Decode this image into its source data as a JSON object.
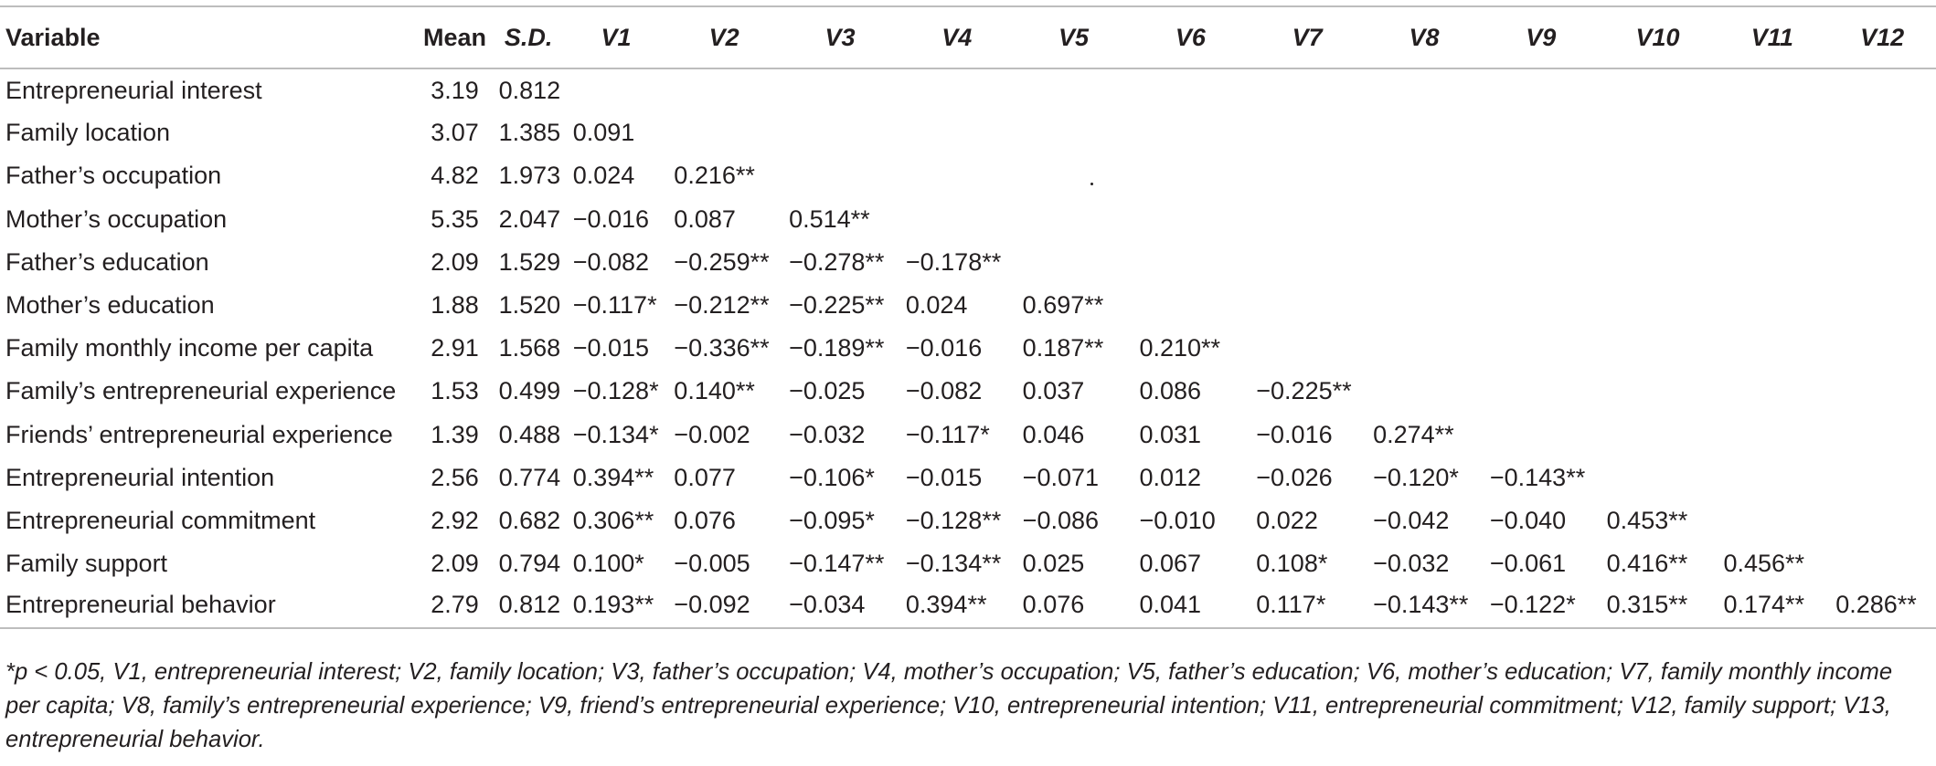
{
  "table": {
    "headers": [
      "Variable",
      "Mean",
      "S.D.",
      "V1",
      "V2",
      "V3",
      "V4",
      "V5",
      "V6",
      "V7",
      "V8",
      "V9",
      "V10",
      "V11",
      "V12"
    ],
    "rows": [
      [
        "Entrepreneurial interest",
        "3.19",
        "0.812",
        "",
        "",
        "",
        "",
        "",
        "",
        "",
        "",
        "",
        "",
        "",
        ""
      ],
      [
        "Family location",
        "3.07",
        "1.385",
        "0.091",
        "",
        "",
        "",
        "",
        "",
        "",
        "",
        "",
        "",
        "",
        ""
      ],
      [
        "Father’s occupation",
        "4.82",
        "1.973",
        "0.024",
        "0.216**",
        "",
        "",
        "",
        "",
        "",
        "",
        "",
        "",
        "",
        ""
      ],
      [
        "Mother’s occupation",
        "5.35",
        "2.047",
        "−0.016",
        "0.087",
        "0.514**",
        "",
        "",
        "",
        "",
        "",
        "",
        "",
        "",
        ""
      ],
      [
        "Father’s education",
        "2.09",
        "1.529",
        "−0.082",
        "−0.259**",
        "−0.278**",
        "−0.178**",
        "",
        "",
        "",
        "",
        "",
        "",
        "",
        ""
      ],
      [
        "Mother’s education",
        "1.88",
        "1.520",
        "−0.117*",
        "−0.212**",
        "−0.225**",
        "0.024",
        "0.697**",
        "",
        "",
        "",
        "",
        "",
        "",
        ""
      ],
      [
        "Family monthly income per capita",
        "2.91",
        "1.568",
        "−0.015",
        "−0.336**",
        "−0.189**",
        "−0.016",
        "0.187**",
        "0.210**",
        "",
        "",
        "",
        "",
        "",
        ""
      ],
      [
        "Family’s entrepreneurial experience",
        "1.53",
        "0.499",
        "−0.128*",
        "0.140**",
        "−0.025",
        "−0.082",
        "0.037",
        "0.086",
        "−0.225**",
        "",
        "",
        "",
        "",
        ""
      ],
      [
        "Friends’ entrepreneurial experience",
        "1.39",
        "0.488",
        "−0.134*",
        "−0.002",
        "−0.032",
        "−0.117*",
        "0.046",
        "0.031",
        "−0.016",
        "0.274**",
        "",
        "",
        "",
        ""
      ],
      [
        "Entrepreneurial intention",
        "2.56",
        "0.774",
        "0.394**",
        "0.077",
        "−0.106*",
        "−0.015",
        "−0.071",
        "0.012",
        "−0.026",
        "−0.120*",
        "−0.143**",
        "",
        "",
        ""
      ],
      [
        "Entrepreneurial commitment",
        "2.92",
        "0.682",
        "0.306**",
        "0.076",
        "−0.095*",
        "−0.128**",
        "−0.086",
        "−0.010",
        "0.022",
        "−0.042",
        "−0.040",
        "0.453**",
        "",
        ""
      ],
      [
        "Family support",
        "2.09",
        "0.794",
        "0.100*",
        "−0.005",
        "−0.147**",
        "−0.134**",
        "0.025",
        "0.067",
        "0.108*",
        "−0.032",
        "−0.061",
        "0.416**",
        "0.456**",
        ""
      ],
      [
        "Entrepreneurial behavior",
        "2.79",
        "0.812",
        "0.193**",
        "−0.092",
        "−0.034",
        "0.394**",
        "0.076",
        "0.041",
        "0.117*",
        "−0.143**",
        "−0.122*",
        "0.315**",
        "0.174**",
        "0.286**"
      ]
    ]
  },
  "footnote": "*p < 0.05, V1, entrepreneurial interest; V2, family location; V3, father’s occupation; V4, mother’s occupation; V5, father’s education; V6, mother’s education; V7, family monthly income per capita; V8, family’s entrepreneurial experience; V9, friend’s entrepreneurial experience; V10, entrepreneurial intention; V11, entrepreneurial commitment; V12, family support; V13, entrepreneurial behavior."
}
